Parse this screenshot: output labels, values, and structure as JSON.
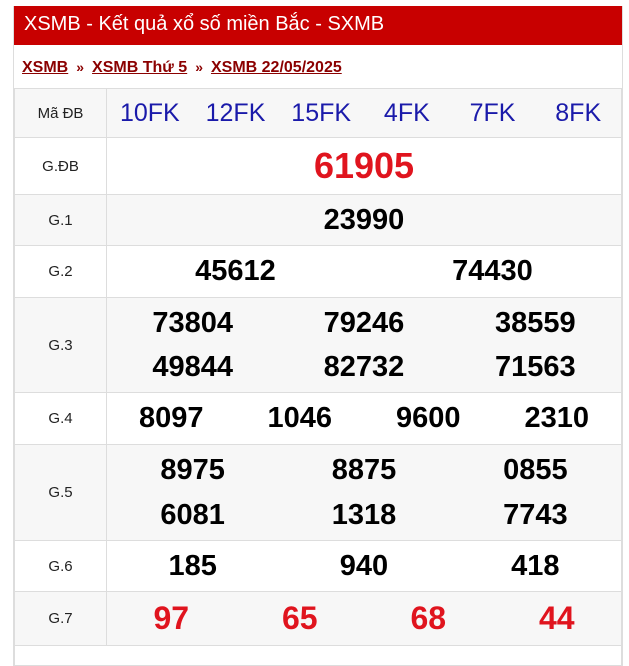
{
  "header": {
    "title": "XSMB - Kết quả xổ số miền Bắc - SXMB"
  },
  "breadcrumb": {
    "items": [
      "XSMB",
      "XSMB Thứ 5",
      "XSMB 22/05/2025"
    ],
    "separator": "»"
  },
  "colors": {
    "header_bg": "#c80000",
    "special": "#e0141e",
    "codes": "#1a1aaa"
  },
  "codes": {
    "label": "Mã ĐB",
    "values": [
      "10FK",
      "12FK",
      "15FK",
      "4FK",
      "7FK",
      "8FK"
    ]
  },
  "prizes": [
    {
      "label": "G.ĐB",
      "values": [
        "61905"
      ]
    },
    {
      "label": "G.1",
      "values": [
        "23990"
      ]
    },
    {
      "label": "G.2",
      "values": [
        "45612",
        "74430"
      ]
    },
    {
      "label": "G.3",
      "values": [
        "73804",
        "79246",
        "38559",
        "49844",
        "82732",
        "71563"
      ]
    },
    {
      "label": "G.4",
      "values": [
        "8097",
        "1046",
        "9600",
        "2310"
      ]
    },
    {
      "label": "G.5",
      "values": [
        "8975",
        "8875",
        "0855",
        "6081",
        "1318",
        "7743"
      ]
    },
    {
      "label": "G.6",
      "values": [
        "185",
        "940",
        "418"
      ]
    },
    {
      "label": "G.7",
      "values": [
        "97",
        "65",
        "68",
        "44"
      ]
    }
  ]
}
